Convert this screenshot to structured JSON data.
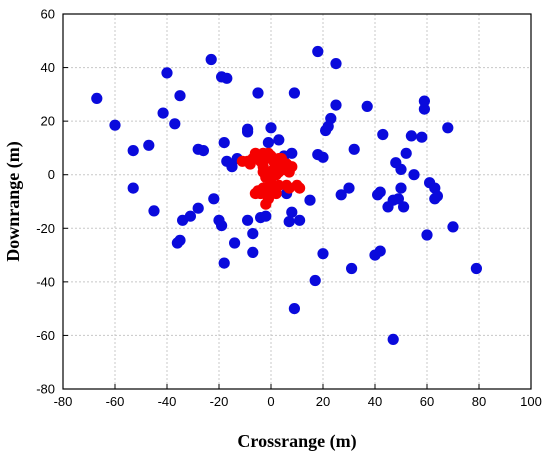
{
  "chart_data": {
    "type": "scatter",
    "title": "",
    "xlabel": "Crossrange (m)",
    "ylabel": "Downrange (m)",
    "xlim": [
      -80,
      100
    ],
    "ylim": [
      -80,
      60
    ],
    "xticks": [
      -80,
      -60,
      -40,
      -20,
      0,
      20,
      40,
      60,
      80,
      100
    ],
    "yticks": [
      -80,
      -60,
      -40,
      -20,
      0,
      20,
      40,
      60
    ],
    "grid": true,
    "legend": "none",
    "series": [
      {
        "color": "#0a0adc",
        "points": [
          [
            -67,
            28.5
          ],
          [
            -60,
            18.5
          ],
          [
            -53,
            9
          ],
          [
            -53,
            -5
          ],
          [
            -47,
            11
          ],
          [
            -45,
            -13.5
          ],
          [
            -40,
            38
          ],
          [
            -41.5,
            23
          ],
          [
            -37,
            19
          ],
          [
            -35,
            29.5
          ],
          [
            -36,
            -25.5
          ],
          [
            -35,
            -24.5
          ],
          [
            -34,
            -17
          ],
          [
            -31,
            -15.5
          ],
          [
            -28,
            9.5
          ],
          [
            -28,
            -12.5
          ],
          [
            -23,
            43
          ],
          [
            -22,
            -9
          ],
          [
            -20,
            -17
          ],
          [
            -19,
            -19
          ],
          [
            -19,
            36.5
          ],
          [
            -17,
            36
          ],
          [
            -18,
            12
          ],
          [
            -17,
            5
          ],
          [
            -18,
            -33
          ],
          [
            -14,
            -25.5
          ],
          [
            -13,
            6
          ],
          [
            -15,
            3
          ],
          [
            -9,
            17
          ],
          [
            -9,
            16
          ],
          [
            -9,
            -17
          ],
          [
            -7,
            -22
          ],
          [
            -7,
            -29
          ],
          [
            -5,
            30.5
          ],
          [
            -4,
            -16
          ],
          [
            -2,
            -15.5
          ],
          [
            -1,
            12
          ],
          [
            0,
            17.5
          ],
          [
            3,
            13
          ],
          [
            5,
            7
          ],
          [
            6,
            -7
          ],
          [
            7,
            -17.5
          ],
          [
            8,
            -14
          ],
          [
            8,
            8
          ],
          [
            9,
            30.5
          ],
          [
            9,
            -50
          ],
          [
            11,
            -17
          ],
          [
            15,
            -9.5
          ],
          [
            17,
            -39.5
          ],
          [
            18,
            46
          ],
          [
            18,
            7.5
          ],
          [
            20,
            6.5
          ],
          [
            20,
            -29.5
          ],
          [
            21,
            16.5
          ],
          [
            22,
            18
          ],
          [
            23,
            21
          ],
          [
            25,
            41.5
          ],
          [
            25,
            26
          ],
          [
            27,
            -7.5
          ],
          [
            30,
            -5
          ],
          [
            31,
            -35
          ],
          [
            32,
            9.5
          ],
          [
            37,
            25.5
          ],
          [
            40,
            -30
          ],
          [
            41,
            -7.5
          ],
          [
            42,
            -28.5
          ],
          [
            42,
            -6.5
          ],
          [
            43,
            15
          ],
          [
            45,
            -12
          ],
          [
            47,
            -9.5
          ],
          [
            47,
            -61.5
          ],
          [
            48,
            4.5
          ],
          [
            49,
            -9
          ],
          [
            50,
            2
          ],
          [
            50,
            -5
          ],
          [
            51,
            -12
          ],
          [
            52,
            8
          ],
          [
            54,
            14.5
          ],
          [
            55,
            0
          ],
          [
            58,
            14
          ],
          [
            59,
            27.5
          ],
          [
            59,
            24.5
          ],
          [
            60,
            -22.5
          ],
          [
            61,
            -3
          ],
          [
            63,
            -5
          ],
          [
            63,
            -9
          ],
          [
            64,
            -8
          ],
          [
            68,
            17.5
          ],
          [
            70,
            -19.5
          ],
          [
            79,
            -35
          ],
          [
            -26,
            9
          ]
        ]
      },
      {
        "color": "#f50000",
        "points": [
          [
            -11,
            5
          ],
          [
            -8,
            4
          ],
          [
            -7,
            6
          ],
          [
            -6,
            8
          ],
          [
            -5,
            7
          ],
          [
            -4,
            5
          ],
          [
            -3,
            3
          ],
          [
            -2,
            6
          ],
          [
            -1,
            8
          ],
          [
            0,
            7
          ],
          [
            1,
            5
          ],
          [
            2,
            4
          ],
          [
            3,
            6
          ],
          [
            4,
            3
          ],
          [
            5,
            2
          ],
          [
            6,
            4
          ],
          [
            7,
            1
          ],
          [
            8,
            3
          ],
          [
            0,
            1
          ],
          [
            -1,
            0
          ],
          [
            1,
            2
          ],
          [
            2,
            0
          ],
          [
            3,
            1
          ],
          [
            -3,
            1
          ],
          [
            -2,
            -1
          ],
          [
            0,
            -3
          ],
          [
            1,
            -5
          ],
          [
            2,
            -7
          ],
          [
            -1,
            -9
          ],
          [
            -2,
            -11
          ],
          [
            -4,
            -7
          ],
          [
            -6,
            -7
          ],
          [
            -5,
            -6
          ],
          [
            -3,
            -5
          ],
          [
            -1,
            -6
          ],
          [
            3,
            -4
          ],
          [
            6,
            -4
          ],
          [
            7,
            -5
          ],
          [
            10,
            -4
          ],
          [
            11,
            -5
          ],
          [
            -3,
            8
          ],
          [
            4,
            6
          ],
          [
            -9,
            5
          ]
        ]
      }
    ]
  }
}
